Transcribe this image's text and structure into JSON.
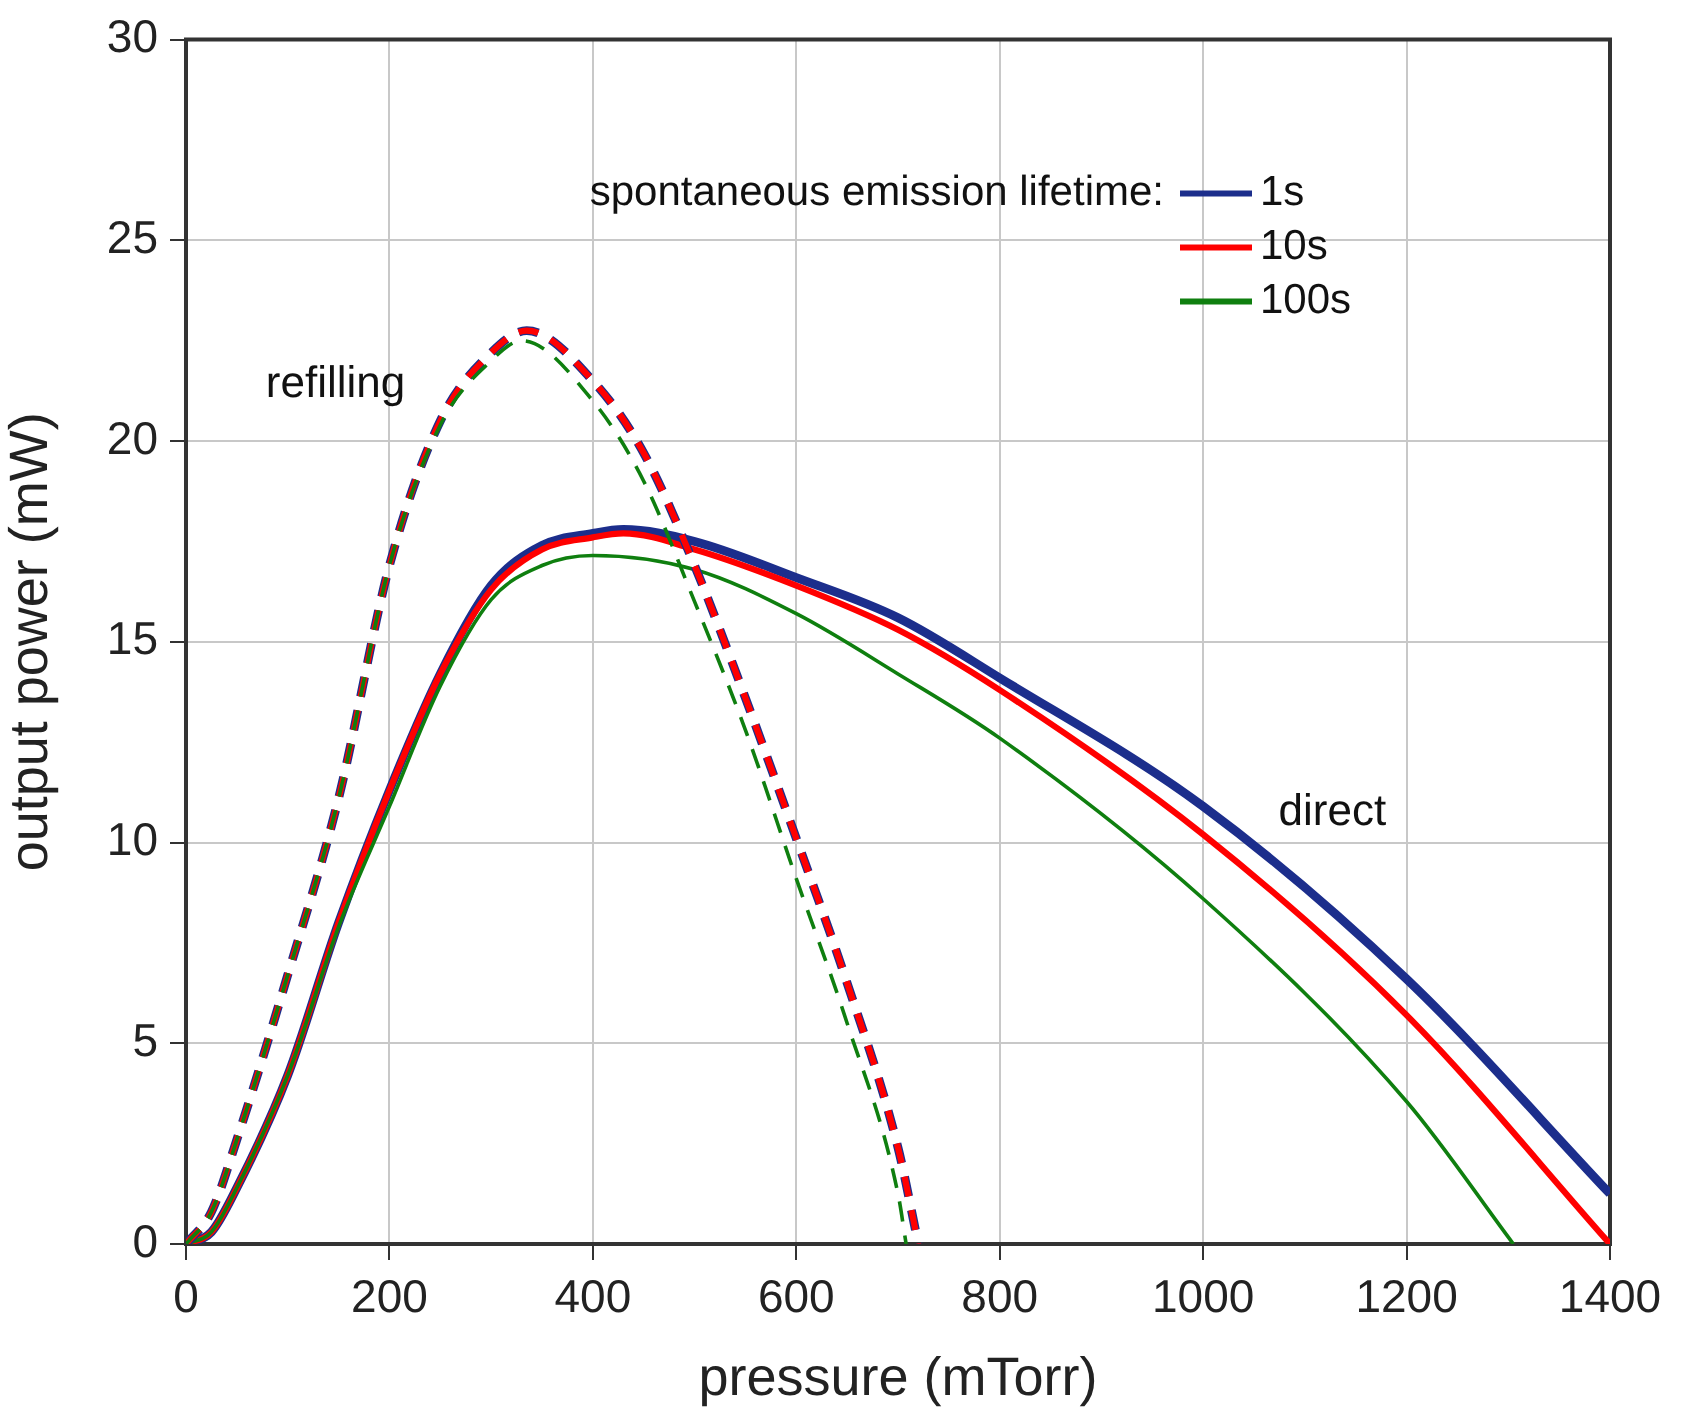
{
  "chart_data": {
    "type": "line",
    "xlabel": "pressure (mTorr)",
    "ylabel": "output power (mW)",
    "legend_title": "spontaneous emission lifetime:",
    "legend": "top right",
    "grid": true,
    "marker": "none",
    "xlim": [
      0,
      1400
    ],
    "xticks": [
      0,
      200,
      400,
      600,
      800,
      1000,
      1200,
      1400
    ],
    "ylim": [
      0,
      30
    ],
    "yticks": [
      0,
      5,
      10,
      15,
      20,
      25,
      30
    ],
    "annotations": [
      "refilling",
      "direct"
    ],
    "series": [
      {
        "name": "1s",
        "color": "#1c2e8c",
        "line_style": "solid",
        "x": [
          0,
          25,
          50,
          100,
          150,
          200,
          250,
          300,
          350,
          400,
          430,
          500,
          600,
          700,
          800,
          1000,
          1200,
          1400
        ],
        "values": [
          0,
          0.3,
          1.4,
          4.2,
          8.0,
          11.3,
          14.2,
          16.4,
          17.4,
          17.7,
          17.8,
          17.5,
          16.6,
          15.6,
          14.1,
          10.9,
          6.6,
          1.25
        ]
      },
      {
        "name": "10s",
        "color": "#ff0000",
        "line_style": "solid",
        "x": [
          0,
          25,
          50,
          100,
          150,
          200,
          250,
          300,
          350,
          400,
          430,
          500,
          600,
          700,
          800,
          1000,
          1200,
          1400
        ],
        "values": [
          0,
          0.3,
          1.4,
          4.2,
          8.0,
          11.3,
          14.2,
          16.3,
          17.3,
          17.6,
          17.7,
          17.3,
          16.4,
          15.3,
          13.8,
          10.2,
          5.7,
          0
        ]
      },
      {
        "name": "100s",
        "color": "#0f7f0f",
        "line_style": "solid",
        "x": [
          0,
          25,
          50,
          100,
          150,
          200,
          250,
          300,
          350,
          400,
          500,
          600,
          700,
          800,
          1000,
          1200,
          1305
        ],
        "values": [
          0,
          0.3,
          1.4,
          4.2,
          7.9,
          10.9,
          13.9,
          16.05,
          16.9,
          17.15,
          16.8,
          15.7,
          14.2,
          12.6,
          8.6,
          3.55,
          0
        ]
      },
      {
        "color": "#1c2e8c",
        "line_style": "dashed",
        "x": [
          0,
          25,
          50,
          100,
          150,
          200,
          250,
          300,
          335,
          400,
          450,
          500,
          550,
          600,
          650,
          700,
          720
        ],
        "values": [
          0,
          0.8,
          2.6,
          6.7,
          11.1,
          16.9,
          20.5,
          22.2,
          22.75,
          21.5,
          19.7,
          16.9,
          13.6,
          10.1,
          6.5,
          2.4,
          0
        ]
      },
      {
        "color": "#ff0000",
        "line_style": "dashed",
        "x": [
          0,
          25,
          50,
          100,
          150,
          200,
          250,
          300,
          335,
          400,
          450,
          500,
          550,
          600,
          650,
          700,
          720
        ],
        "values": [
          0,
          0.8,
          2.6,
          6.7,
          11.1,
          16.9,
          20.5,
          22.2,
          22.75,
          21.5,
          19.7,
          16.9,
          13.6,
          10.1,
          6.5,
          2.4,
          0
        ]
      },
      {
        "color": "#0f7f0f",
        "line_style": "dashed",
        "x": [
          0,
          25,
          50,
          100,
          150,
          200,
          250,
          300,
          330,
          400,
          450,
          500,
          550,
          600,
          650,
          700,
          708
        ],
        "values": [
          0,
          0.8,
          2.6,
          6.7,
          11.1,
          16.9,
          20.4,
          22.0,
          22.5,
          21.0,
          19.0,
          16.0,
          12.8,
          9.1,
          5.5,
          1.25,
          0
        ]
      }
    ]
  }
}
